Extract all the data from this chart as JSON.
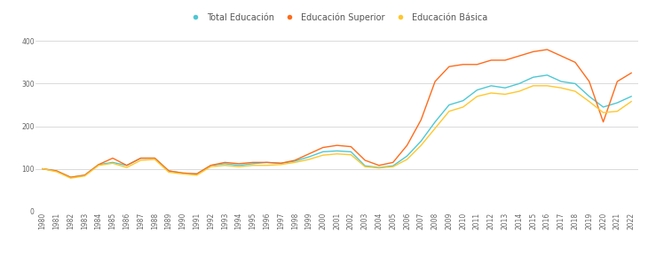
{
  "years": [
    1980,
    1981,
    1982,
    1983,
    1984,
    1985,
    1986,
    1987,
    1988,
    1989,
    1990,
    1991,
    1992,
    1993,
    1994,
    1995,
    1996,
    1997,
    1998,
    1999,
    2000,
    2001,
    2002,
    2003,
    2004,
    2005,
    2006,
    2007,
    2008,
    2009,
    2010,
    2011,
    2012,
    2013,
    2014,
    2015,
    2016,
    2017,
    2018,
    2019,
    2020,
    2021,
    2022
  ],
  "total_educacion": [
    100,
    95,
    80,
    85,
    110,
    115,
    108,
    125,
    125,
    95,
    90,
    88,
    108,
    112,
    108,
    112,
    115,
    113,
    118,
    128,
    140,
    142,
    140,
    107,
    103,
    107,
    130,
    165,
    210,
    250,
    260,
    285,
    295,
    290,
    300,
    315,
    320,
    305,
    300,
    270,
    245,
    255,
    270
  ],
  "educacion_superior": [
    100,
    95,
    80,
    85,
    110,
    125,
    108,
    125,
    125,
    95,
    90,
    88,
    108,
    115,
    112,
    115,
    115,
    113,
    120,
    135,
    150,
    155,
    152,
    120,
    108,
    115,
    155,
    215,
    305,
    340,
    345,
    345,
    355,
    355,
    365,
    375,
    380,
    365,
    350,
    305,
    210,
    305,
    325
  ],
  "educacion_basica": [
    100,
    93,
    78,
    83,
    108,
    113,
    103,
    120,
    122,
    92,
    88,
    85,
    105,
    108,
    105,
    108,
    108,
    110,
    115,
    122,
    132,
    135,
    133,
    105,
    102,
    105,
    122,
    155,
    195,
    235,
    245,
    270,
    278,
    275,
    282,
    295,
    295,
    290,
    282,
    258,
    232,
    235,
    258
  ],
  "color_total": "#4DC8D4",
  "color_superior": "#FF6B1A",
  "color_basica": "#FFC72C",
  "ylim": [
    0,
    420
  ],
  "yticks": [
    0,
    100,
    200,
    300,
    400
  ],
  "legend_labels": [
    "Total Educación",
    "Educación Superior",
    "Educación Básica"
  ],
  "background_color": "#ffffff",
  "grid_color": "#cccccc",
  "linewidth": 1.0,
  "fontsize_legend": 7,
  "fontsize_ticks": 5.5
}
